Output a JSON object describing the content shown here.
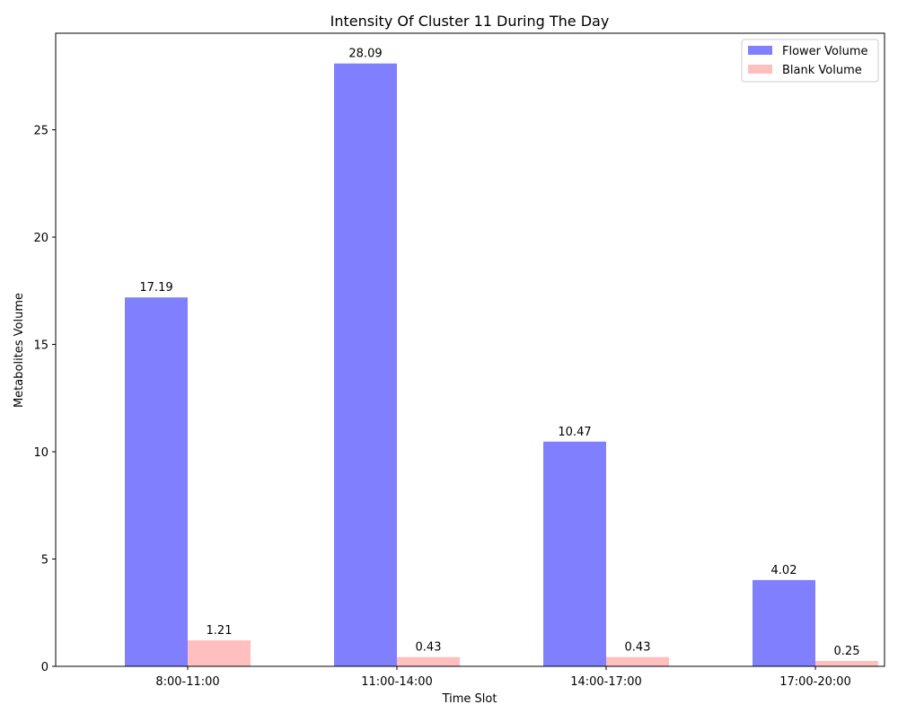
{
  "chart_data": {
    "type": "bar",
    "title": "Intensity Of Cluster 11 During The Day",
    "xlabel": "Time Slot",
    "ylabel": "Metabolites Volume",
    "categories": [
      "8:00-11:00",
      "11:00-14:00",
      "14:00-17:00",
      "17:00-20:00"
    ],
    "ylim": [
      0,
      29.5
    ],
    "yticks": [
      0,
      5,
      10,
      15,
      20,
      25
    ],
    "grid": false,
    "legend_position": "top-right",
    "series": [
      {
        "name": "Flower Volume",
        "color": "#8080ff",
        "values": [
          17.19,
          28.09,
          10.47,
          4.02
        ],
        "labels": [
          "17.19",
          "28.09",
          "10.47",
          "4.02"
        ]
      },
      {
        "name": "Blank Volume",
        "color": "#ffbfbf",
        "values": [
          1.21,
          0.43,
          0.43,
          0.25
        ],
        "labels": [
          "1.21",
          "0.43",
          "0.43",
          "0.25"
        ]
      }
    ]
  }
}
